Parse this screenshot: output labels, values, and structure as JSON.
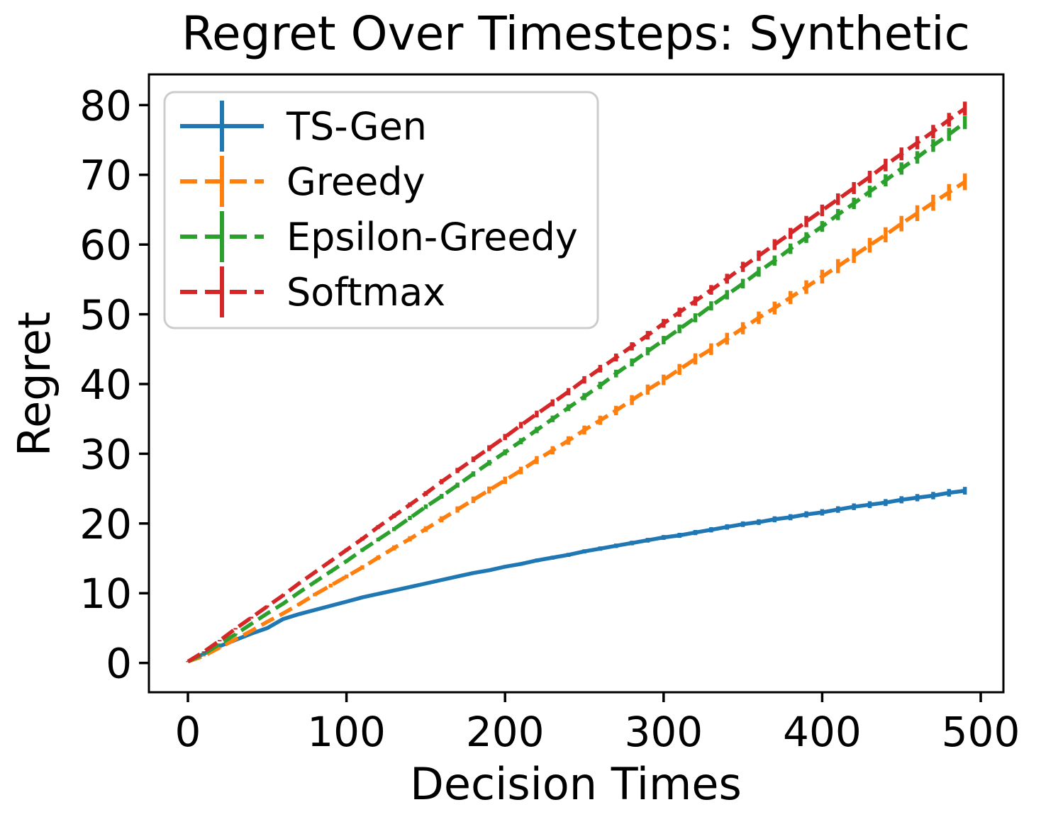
{
  "figure": {
    "title": "Regret Over Timesteps: Synthetic"
  },
  "chart_data": {
    "type": "line",
    "title": "Regret Over Timesteps: Synthetic",
    "xlabel": "Decision Times",
    "ylabel": "Regret",
    "xlim": [
      -24.6,
      514.3
    ],
    "ylim": [
      -4.2,
      84.4
    ],
    "xticks": [
      0,
      100,
      200,
      300,
      400,
      500
    ],
    "yticks": [
      0,
      10,
      20,
      30,
      40,
      50,
      60,
      70,
      80
    ],
    "grid": false,
    "legend_position": "upper left",
    "x": [
      0,
      10,
      20,
      30,
      40,
      50,
      60,
      70,
      80,
      90,
      100,
      110,
      120,
      130,
      140,
      150,
      160,
      170,
      180,
      190,
      200,
      210,
      220,
      230,
      240,
      250,
      260,
      270,
      280,
      290,
      300,
      310,
      320,
      330,
      340,
      350,
      360,
      370,
      380,
      390,
      400,
      410,
      420,
      430,
      440,
      450,
      460,
      470,
      480,
      490
    ],
    "series": [
      {
        "name": "TS-Gen",
        "color": "#1f77b4",
        "line_style": "solid",
        "values": [
          0.2,
          1.3,
          2.4,
          3.3,
          4.2,
          5.0,
          6.3,
          7.0,
          7.6,
          8.2,
          8.8,
          9.4,
          9.9,
          10.4,
          10.9,
          11.4,
          11.9,
          12.4,
          12.9,
          13.3,
          13.8,
          14.2,
          14.7,
          15.1,
          15.5,
          16.0,
          16.4,
          16.8,
          17.2,
          17.6,
          18.0,
          18.3,
          18.7,
          19.1,
          19.5,
          19.9,
          20.2,
          20.6,
          20.9,
          21.3,
          21.6,
          22.0,
          22.4,
          22.7,
          23.0,
          23.4,
          23.7,
          24.0,
          24.4,
          24.7
        ],
        "yerr": [
          0.03,
          0.04,
          0.05,
          0.06,
          0.07,
          0.08,
          0.09,
          0.1,
          0.12,
          0.13,
          0.14,
          0.15,
          0.16,
          0.17,
          0.18,
          0.19,
          0.2,
          0.21,
          0.22,
          0.23,
          0.24,
          0.25,
          0.27,
          0.28,
          0.29,
          0.3,
          0.31,
          0.32,
          0.33,
          0.34,
          0.35,
          0.36,
          0.37,
          0.38,
          0.39,
          0.4,
          0.41,
          0.43,
          0.44,
          0.45,
          0.46,
          0.47,
          0.48,
          0.49,
          0.5,
          0.51,
          0.52,
          0.53,
          0.54,
          0.55
        ]
      },
      {
        "name": "Greedy",
        "color": "#ff7f0e",
        "line_style": "dashed",
        "values": [
          0.2,
          1.0,
          2.2,
          3.4,
          4.6,
          5.9,
          7.1,
          8.4,
          9.8,
          11.1,
          12.4,
          13.7,
          15.1,
          16.5,
          17.8,
          19.2,
          20.6,
          22.0,
          23.4,
          24.8,
          26.2,
          27.6,
          29.1,
          30.5,
          31.9,
          33.4,
          34.8,
          36.2,
          37.7,
          39.2,
          40.6,
          42.1,
          43.6,
          45.0,
          46.5,
          48.0,
          49.5,
          50.9,
          52.4,
          53.9,
          55.4,
          56.9,
          58.4,
          59.9,
          61.4,
          63.0,
          64.5,
          66.0,
          67.5,
          69.0
        ],
        "yerr": [
          0.05,
          0.07,
          0.1,
          0.12,
          0.14,
          0.17,
          0.19,
          0.21,
          0.24,
          0.26,
          0.28,
          0.31,
          0.33,
          0.36,
          0.38,
          0.4,
          0.43,
          0.45,
          0.47,
          0.5,
          0.52,
          0.54,
          0.57,
          0.59,
          0.61,
          0.64,
          0.66,
          0.68,
          0.71,
          0.73,
          0.75,
          0.78,
          0.8,
          0.83,
          0.85,
          0.87,
          0.9,
          0.92,
          0.94,
          0.97,
          0.99,
          1.01,
          1.04,
          1.06,
          1.08,
          1.11,
          1.13,
          1.15,
          1.18,
          1.2
        ]
      },
      {
        "name": "Epsilon-Greedy",
        "color": "#2ca02c",
        "line_style": "dashed",
        "values": [
          0.2,
          1.3,
          2.7,
          4.1,
          5.6,
          7.1,
          8.5,
          10.1,
          11.6,
          13.1,
          14.6,
          16.2,
          17.7,
          19.2,
          20.8,
          22.4,
          23.9,
          25.5,
          27.1,
          28.7,
          30.2,
          31.8,
          33.4,
          35.0,
          36.6,
          38.2,
          39.8,
          41.5,
          43.1,
          44.7,
          46.3,
          47.9,
          49.5,
          51.2,
          52.8,
          54.4,
          56.1,
          57.7,
          59.4,
          61.0,
          62.6,
          64.3,
          65.9,
          67.6,
          69.2,
          70.9,
          72.5,
          74.2,
          75.8,
          77.5
        ],
        "yerr": [
          0.05,
          0.07,
          0.09,
          0.11,
          0.12,
          0.14,
          0.16,
          0.18,
          0.2,
          0.22,
          0.23,
          0.25,
          0.27,
          0.29,
          0.31,
          0.33,
          0.34,
          0.36,
          0.38,
          0.4,
          0.42,
          0.44,
          0.45,
          0.47,
          0.49,
          0.51,
          0.53,
          0.55,
          0.56,
          0.58,
          0.6,
          0.62,
          0.64,
          0.66,
          0.67,
          0.69,
          0.71,
          0.73,
          0.75,
          0.77,
          0.78,
          0.8,
          0.82,
          0.84,
          0.86,
          0.88,
          0.89,
          0.91,
          0.93,
          0.95
        ]
      },
      {
        "name": "Softmax",
        "color": "#d62728",
        "line_style": "dashed",
        "values": [
          0.2,
          1.6,
          3.2,
          4.9,
          6.5,
          8.1,
          9.7,
          11.4,
          13.0,
          14.6,
          16.2,
          17.8,
          19.5,
          21.1,
          22.7,
          24.3,
          26.0,
          27.6,
          29.2,
          30.8,
          32.4,
          34.1,
          35.7,
          37.3,
          38.9,
          40.6,
          42.2,
          43.8,
          45.4,
          47.0,
          48.7,
          50.3,
          51.9,
          53.5,
          55.1,
          56.8,
          58.4,
          60.0,
          61.6,
          63.3,
          64.9,
          66.5,
          68.1,
          69.7,
          71.4,
          73.0,
          74.6,
          76.2,
          77.9,
          79.5
        ],
        "yerr": [
          0.05,
          0.07,
          0.09,
          0.11,
          0.13,
          0.15,
          0.17,
          0.19,
          0.21,
          0.22,
          0.24,
          0.26,
          0.28,
          0.3,
          0.32,
          0.34,
          0.36,
          0.38,
          0.4,
          0.42,
          0.44,
          0.46,
          0.48,
          0.5,
          0.52,
          0.53,
          0.55,
          0.57,
          0.59,
          0.61,
          0.63,
          0.65,
          0.67,
          0.69,
          0.71,
          0.73,
          0.75,
          0.77,
          0.79,
          0.81,
          0.83,
          0.84,
          0.86,
          0.88,
          0.9,
          0.92,
          0.94,
          0.96,
          0.98,
          1.0
        ]
      }
    ]
  }
}
